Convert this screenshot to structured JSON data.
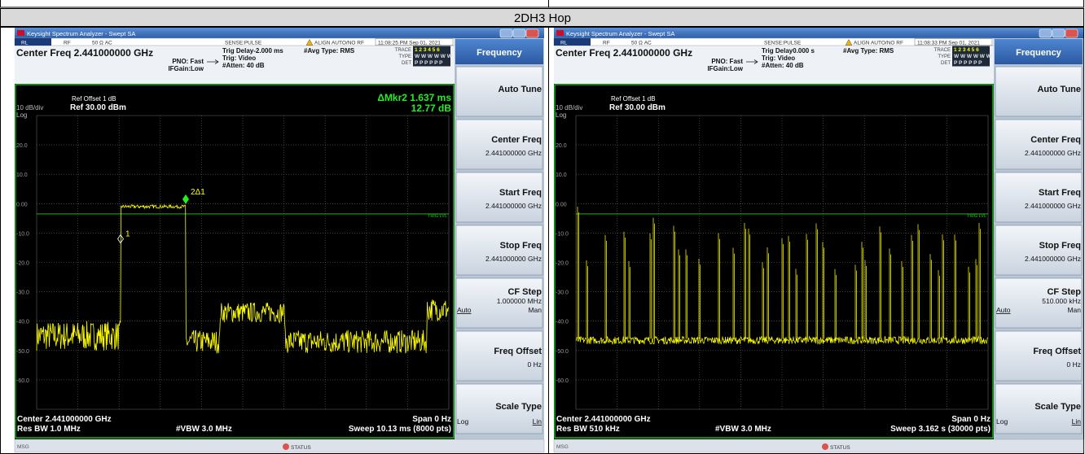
{
  "header": {
    "title": "2DH3  Hop"
  },
  "panels": [
    {
      "window_title": "Keysight Spectrum Analyzer - Swept SA",
      "status": [
        "RL",
        "RF",
        "50 Ω  AC",
        "SENSE:PULSE",
        "ALIGN AUTO/NO RF",
        "11:08:25 PM Sep 01, 2021"
      ],
      "center_freq": "Center Freq 2.441000000 GHz",
      "settings": [
        "PNO: Fast",
        "IFGain:Low",
        "Trig Delay-2.000 ms",
        "Trig: Video",
        "#Atten: 40 dB",
        "#Avg Type: RMS"
      ],
      "trace": {
        "labels": [
          "TRACE",
          "TYPE",
          "DET"
        ],
        "rows": [
          "1 2 3 4 5 6",
          "W W W W W W",
          "P P P P P P"
        ]
      },
      "ref_offset": "Ref Offset 1 dB",
      "ref": "Ref 30.00 dBm",
      "scale": "10 dB/div",
      "log": "Log",
      "marker_readout": [
        "ΔMkr2 1.637 ms",
        "12.77 dB"
      ],
      "y_labels": [
        "20.0",
        "10.0",
        "0.00",
        "-10.0",
        "-20.0",
        "-30.0",
        "-40.0",
        "-50.0",
        "-60.0"
      ],
      "trig_label": "TRIG LVL",
      "marker_labels": [
        "1",
        "2Δ1"
      ],
      "footer": {
        "center": "Center 2.441000000 GHz",
        "span": "Span 0 Hz",
        "rbw": "Res BW 1.0 MHz",
        "vbw": "#VBW 3.0 MHz",
        "sweep": "Sweep  10.13 ms (8000 pts)"
      },
      "menu": {
        "title": "Frequency",
        "keys": [
          {
            "label": "Auto Tune"
          },
          {
            "label": "Center Freq",
            "value": "2.441000000 GHz"
          },
          {
            "label": "Start Freq",
            "value": "2.441000000 GHz"
          },
          {
            "label": "Stop Freq",
            "value": "2.441000000 GHz"
          },
          {
            "label": "CF Step",
            "value": "1.000000 MHz",
            "options": [
              "Auto",
              "Man"
            ]
          },
          {
            "label": "Freq Offset",
            "value": "0 Hz"
          },
          {
            "label": "Scale Type",
            "options": [
              "Log",
              "Lin"
            ]
          }
        ]
      },
      "status_bar": [
        "MSG",
        "STATUS"
      ]
    },
    {
      "window_title": "Keysight Spectrum Analyzer - Swept SA",
      "status": [
        "RL",
        "RF",
        "50 Ω  AC",
        "SENSE:PULSE",
        "ALIGN AUTO/NO RF",
        "11:08:33 PM Sep 01, 2021"
      ],
      "center_freq": "Center Freq 2.441000000 GHz",
      "settings": [
        "PNO: Fast",
        "IFGain:Low",
        "Trig Delay0.000 s",
        "Trig: Video",
        "#Atten: 40 dB",
        "#Avg Type: RMS"
      ],
      "trace": {
        "labels": [
          "TRACE",
          "TYPE",
          "DET"
        ],
        "rows": [
          "1 2 3 4 5 6",
          "W W W W W W",
          "P P P P P P"
        ]
      },
      "ref_offset": "Ref Offset 1 dB",
      "ref": "Ref 30.00 dBm",
      "scale": "10 dB/div",
      "log": "Log",
      "y_labels": [
        "20.0",
        "10.0",
        "0.00",
        "-10.0",
        "-20.0",
        "-30.0",
        "-40.0",
        "-50.0",
        "-60.0"
      ],
      "trig_label": "TRIG LVL",
      "footer": {
        "center": "Center 2.441000000 GHz",
        "span": "Span 0 Hz",
        "rbw": "Res BW 510 kHz",
        "vbw": "#VBW 3.0 MHz",
        "sweep": "Sweep  3.162 s (30000 pts)"
      },
      "menu": {
        "title": "Frequency",
        "keys": [
          {
            "label": "Auto Tune"
          },
          {
            "label": "Center Freq",
            "value": "2.441000000 GHz"
          },
          {
            "label": "Start Freq",
            "value": "2.441000000 GHz"
          },
          {
            "label": "Stop Freq",
            "value": "2.441000000 GHz"
          },
          {
            "label": "CF Step",
            "value": "510.000 kHz",
            "options": [
              "Auto",
              "Man"
            ]
          },
          {
            "label": "Freq Offset",
            "value": "0 Hz"
          },
          {
            "label": "Scale Type",
            "options": [
              "Log",
              "Lin"
            ]
          }
        ]
      },
      "status_bar": [
        "MSG",
        "STATUS"
      ]
    }
  ]
}
